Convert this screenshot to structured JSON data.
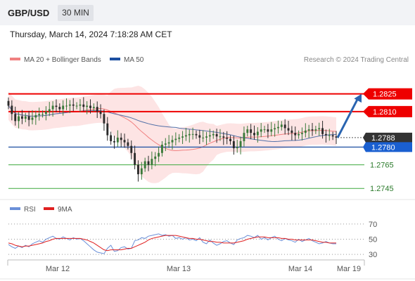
{
  "header": {
    "pair": "GBP/USD",
    "timeframe": "30 MIN"
  },
  "datetime": "Thursday, March 14, 2024 7:18:28 AM CET",
  "legend": {
    "ma20": "MA 20 + Bollinger Bands",
    "ma50": "MA 50",
    "credit": "Research © 2024 Trading Central",
    "rsi": "RSI",
    "ma9": "9MA"
  },
  "colors": {
    "red": "#ee0000",
    "blue": "#1c4fa1",
    "green": "#3da83d",
    "band_fill": "#fde4e4",
    "ma20": "#f08080",
    "ma50": "#5270a8",
    "candle_up": "#3a7a3a",
    "candle_down": "#2b2b2b",
    "rsi_line": "#6a8fd8",
    "rsi_ma": "#e02020",
    "arrow": "#2a64b0"
  },
  "chart_data": [
    {
      "type": "candlestick",
      "series_names": [
        "MA 20 + Bollinger Bands",
        "MA 50"
      ],
      "x_tick_labels": [
        "Mar 12",
        "Mar 13",
        "Mar 14",
        "Mar 19"
      ],
      "ylim": [
        1.2738,
        1.2845
      ],
      "levels": [
        {
          "value": 1.2825,
          "label": "1.2825",
          "kind": "resistance"
        },
        {
          "value": 1.281,
          "label": "1.2810",
          "kind": "resistance"
        },
        {
          "value": 1.2788,
          "label": "1.2788",
          "kind": "last_price"
        },
        {
          "value": 1.278,
          "label": "1.2780",
          "kind": "pivot"
        },
        {
          "value": 1.2765,
          "label": "1.2765",
          "kind": "support"
        },
        {
          "value": 1.2745,
          "label": "1.2745",
          "kind": "support"
        }
      ],
      "close": [
        1.2815,
        1.2808,
        1.2802,
        1.2806,
        1.2804,
        1.2806,
        1.2803,
        1.2805,
        1.2807,
        1.2808,
        1.2808,
        1.281,
        1.2812,
        1.2815,
        1.2814,
        1.2812,
        1.2815,
        1.2815,
        1.2816,
        1.2815,
        1.2815,
        1.2816,
        1.2814,
        1.2815,
        1.2813,
        1.2814,
        1.281,
        1.2808,
        1.28,
        1.279,
        1.2785,
        1.2784,
        1.2788,
        1.2786,
        1.2784,
        1.2781,
        1.2775,
        1.2765,
        1.2757,
        1.2762,
        1.2768,
        1.2765,
        1.277,
        1.2772,
        1.2775,
        1.2782,
        1.2783,
        1.2784,
        1.2786,
        1.2787,
        1.2788,
        1.2789,
        1.279,
        1.2791,
        1.2791,
        1.279,
        1.2788,
        1.2788,
        1.2789,
        1.279,
        1.2791,
        1.2789,
        1.2789,
        1.2788,
        1.2787,
        1.2785,
        1.2779,
        1.278,
        1.2785,
        1.2792,
        1.2795,
        1.2792,
        1.279,
        1.2793,
        1.2795,
        1.2795,
        1.2793,
        1.2795,
        1.2796,
        1.2797,
        1.2799,
        1.2796,
        1.2794,
        1.2792,
        1.279,
        1.2791,
        1.2792,
        1.2794,
        1.2795,
        1.2794,
        1.2795,
        1.2796,
        1.2791,
        1.279,
        1.279,
        1.2789,
        1.2788
      ],
      "last_price": 1.2788,
      "forecast": {
        "from": 1.2788,
        "to": 1.2825
      }
    },
    {
      "type": "line",
      "title": "RSI",
      "series_names": [
        "RSI",
        "9MA"
      ],
      "y_ticks": [
        70,
        50,
        30
      ],
      "ylim": [
        20,
        80
      ],
      "rsi": [
        43,
        40,
        38,
        41,
        39,
        42,
        40,
        44,
        46,
        48,
        46,
        50,
        52,
        54,
        51,
        50,
        53,
        51,
        49,
        52,
        50,
        51,
        48,
        44,
        40,
        36,
        33,
        32,
        31,
        38,
        42,
        34,
        35,
        39,
        40,
        37,
        38,
        48,
        49,
        52,
        51,
        54,
        55,
        56,
        57,
        55,
        56,
        54,
        55,
        51,
        52,
        50,
        52,
        49,
        50,
        48,
        52,
        46,
        44,
        49,
        45,
        42,
        44,
        47,
        48,
        45,
        43,
        49,
        51,
        52,
        55,
        54,
        52,
        55,
        50,
        52,
        49,
        52,
        54,
        50,
        48,
        51,
        49,
        48,
        46,
        50,
        47,
        49,
        51,
        48,
        46,
        44,
        45,
        47,
        45,
        44,
        44
      ],
      "rsi_ma": [
        45,
        44,
        42,
        41,
        40,
        41,
        41,
        42,
        43,
        44,
        45,
        47,
        48,
        50,
        51,
        51,
        51,
        51,
        51,
        51,
        51,
        51,
        50,
        49,
        47,
        45,
        42,
        39,
        36,
        35,
        36,
        36,
        36,
        36,
        37,
        38,
        38,
        40,
        42,
        44,
        46,
        49,
        51,
        52,
        53,
        54,
        55,
        55,
        55,
        55,
        54,
        53,
        52,
        51,
        51,
        50,
        50,
        49,
        48,
        47,
        47,
        46,
        46,
        45,
        45,
        45,
        45,
        46,
        47,
        48,
        50,
        51,
        52,
        53,
        53,
        53,
        52,
        52,
        52,
        52,
        51,
        51,
        50,
        50,
        49,
        49,
        49,
        49,
        49,
        49,
        48,
        47,
        46,
        46,
        45,
        45,
        45
      ]
    }
  ]
}
